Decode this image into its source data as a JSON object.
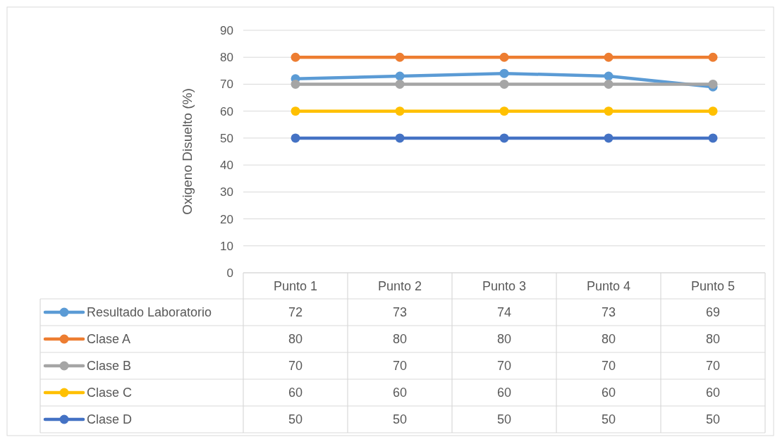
{
  "chart_data": {
    "type": "line",
    "ylabel": "Oxigeno Disuelto (%)",
    "categories": [
      "Punto 1",
      "Punto 2",
      "Punto 3",
      "Punto 4",
      "Punto 5"
    ],
    "series": [
      {
        "name": "Resultado Laboratorio",
        "color": "#5b9bd5",
        "values": [
          72,
          73,
          74,
          73,
          69
        ]
      },
      {
        "name": "Clase A",
        "color": "#ed7d31",
        "values": [
          80,
          80,
          80,
          80,
          80
        ]
      },
      {
        "name": "Clase B",
        "color": "#a5a5a5",
        "values": [
          70,
          70,
          70,
          70,
          70
        ]
      },
      {
        "name": "Clase C",
        "color": "#ffc000",
        "values": [
          60,
          60,
          60,
          60,
          60
        ]
      },
      {
        "name": "Clase D",
        "color": "#4472c4",
        "values": [
          50,
          50,
          50,
          50,
          50
        ]
      }
    ],
    "ylim": [
      0,
      90
    ],
    "yticks": [
      0,
      10,
      20,
      30,
      40,
      50,
      60,
      70,
      80,
      90
    ],
    "grid": "y",
    "marker": "circle",
    "line_style": "solid",
    "legend": "bottom left",
    "data_labels": true
  }
}
